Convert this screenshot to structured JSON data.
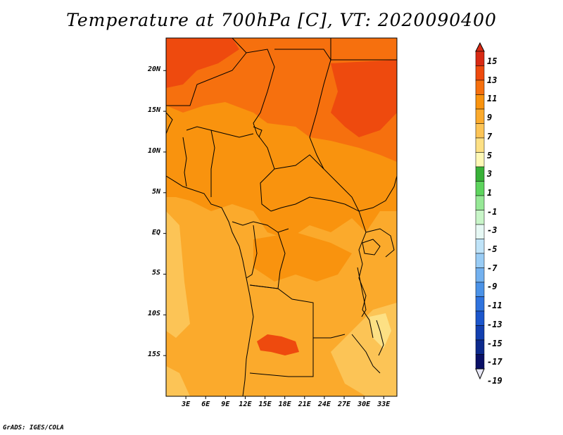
{
  "title": "Temperature at 700hPa [C], VT: 2020090400",
  "credit": "GrADS: IGES/COLA",
  "map": {
    "variable": "Temperature at 700hPa",
    "units": "C",
    "valid_time": "2020090400",
    "lon_range_deg": [
      0,
      35
    ],
    "lat_range_deg": [
      -20,
      24
    ],
    "lat_ticks": [
      {
        "lat": 20,
        "label": "20N"
      },
      {
        "lat": 15,
        "label": "15N"
      },
      {
        "lat": 10,
        "label": "10N"
      },
      {
        "lat": 5,
        "label": "5N"
      },
      {
        "lat": 0,
        "label": "EQ"
      },
      {
        "lat": -5,
        "label": "5S"
      },
      {
        "lat": -10,
        "label": "10S"
      },
      {
        "lat": -15,
        "label": "15S"
      }
    ],
    "lon_ticks": [
      {
        "lon": 3,
        "label": "3E"
      },
      {
        "lon": 6,
        "label": "6E"
      },
      {
        "lon": 9,
        "label": "9E"
      },
      {
        "lon": 12,
        "label": "12E"
      },
      {
        "lon": 15,
        "label": "15E"
      },
      {
        "lon": 18,
        "label": "18E"
      },
      {
        "lon": 21,
        "label": "21E"
      },
      {
        "lon": 24,
        "label": "24E"
      },
      {
        "lon": 27,
        "label": "27E"
      },
      {
        "lon": 30,
        "label": "30E"
      },
      {
        "lon": 33,
        "label": "33E"
      }
    ]
  },
  "colorbar": {
    "levels": [
      {
        "label": "15",
        "color": "#d82a14"
      },
      {
        "label": "13",
        "color": "#ee4a0e"
      },
      {
        "label": "11",
        "color": "#f6700e"
      },
      {
        "label": "9",
        "color": "#f9930e"
      },
      {
        "label": "7",
        "color": "#fbaa2c"
      },
      {
        "label": "5",
        "color": "#fcc456"
      },
      {
        "label": "3",
        "color": "#fde084"
      },
      {
        "label": "1",
        "color": "#fef8b6"
      },
      {
        "label": "-1",
        "color": "#38b138"
      },
      {
        "label": "-3",
        "color": "#5ed45e"
      },
      {
        "label": "-5",
        "color": "#96e896"
      },
      {
        "label": "-7",
        "color": "#c8f5c8"
      },
      {
        "label": "-9",
        "color": "#e6f8f4"
      },
      {
        "label": "-11",
        "color": "#bfe3f8"
      },
      {
        "label": "-13",
        "color": "#99ccf5"
      },
      {
        "label": "-15",
        "color": "#73b1ef"
      },
      {
        "label": "-17",
        "color": "#4b92e7"
      },
      {
        "label": "-19",
        "color": "#2f73de"
      }
    ],
    "extra_colors": [
      "#1c56cc",
      "#1340b0",
      "#0d2a8c",
      "#0a1066"
    ],
    "under_color": "#e8e8f6"
  }
}
